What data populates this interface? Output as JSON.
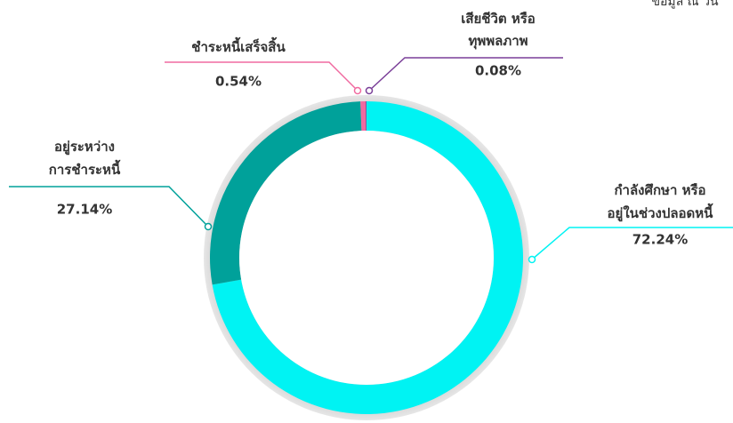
{
  "chart_data": {
    "type": "donut",
    "note": "ข้อมูล ณ วัน",
    "categories": [
      "กำลังศึกษา หรือ\nอยู่ในช่วงปลอดหนี้",
      "อยู่ระหว่าง\nการชำระหนี้",
      "ชำระหนี้เสร็จสิ้น",
      "เสียชีวิต หรือ\nทุพพลภาพ"
    ],
    "values": [
      72.24,
      27.14,
      0.54,
      0.08
    ],
    "value_labels": [
      "72.24%",
      "27.14%",
      "0.54%",
      "0.08%"
    ],
    "colors": [
      "#00f3f3",
      "#00a19a",
      "#f06aa0",
      "#7a3f98"
    ]
  }
}
